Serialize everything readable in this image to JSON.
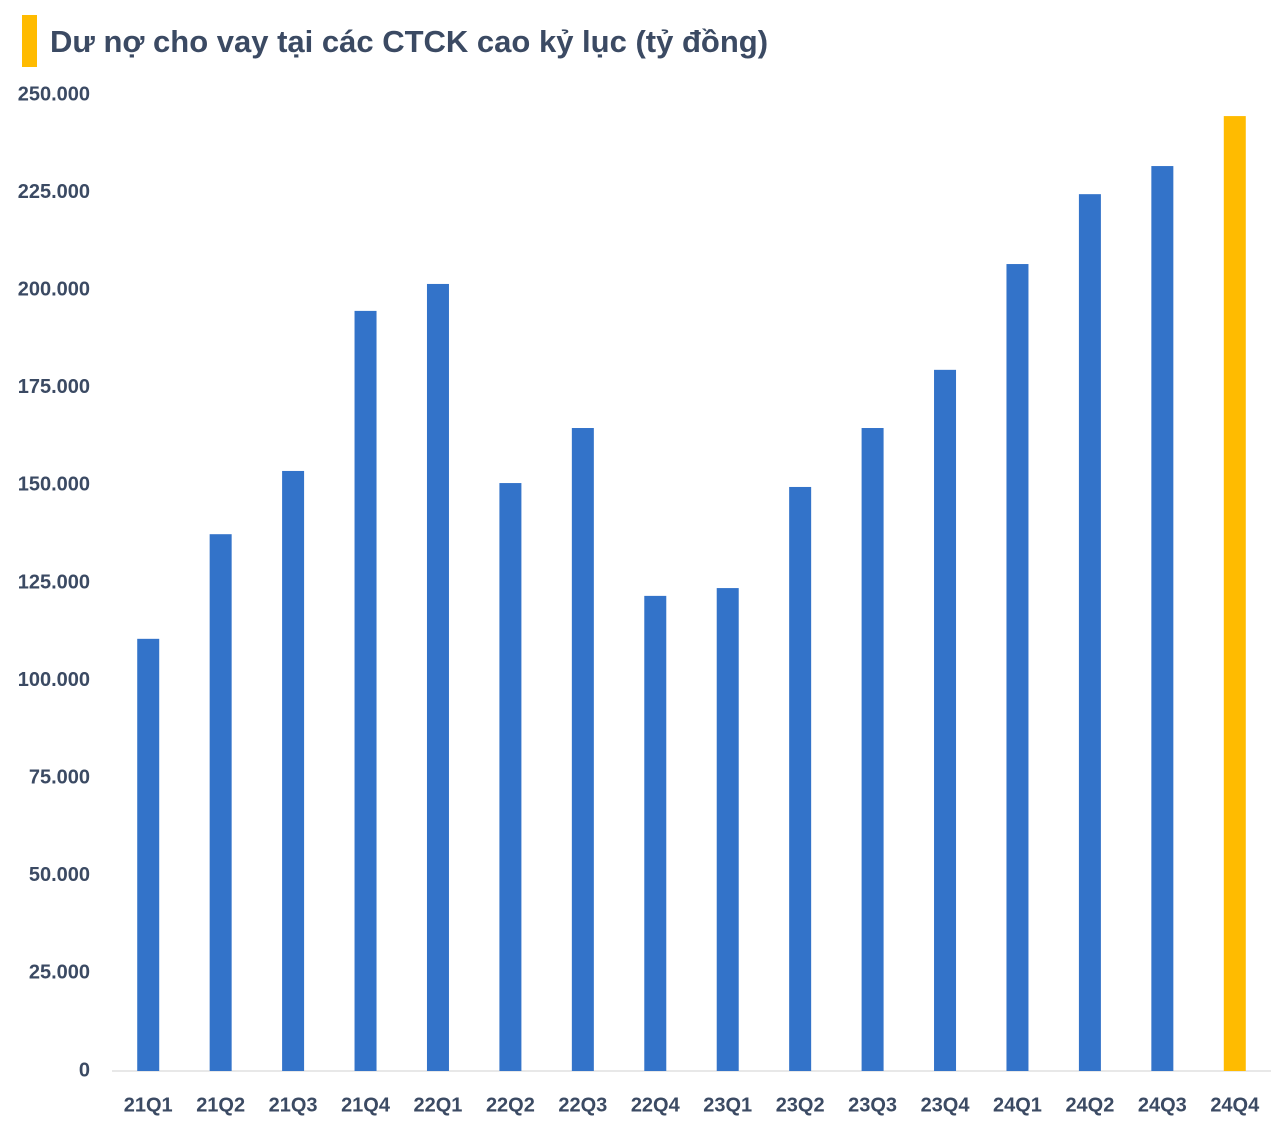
{
  "chart_data": {
    "type": "bar",
    "title": "Dư nợ cho vay tại các CTCK cao kỷ lục (tỷ đồng)",
    "categories": [
      "21Q1",
      "21Q2",
      "21Q3",
      "21Q4",
      "22Q1",
      "22Q2",
      "22Q3",
      "22Q4",
      "23Q1",
      "23Q2",
      "23Q3",
      "23Q4",
      "24Q1",
      "24Q2",
      "24Q3",
      "24Q4"
    ],
    "values": [
      110700,
      137500,
      153700,
      194700,
      201600,
      150600,
      164700,
      121700,
      123700,
      149600,
      164700,
      179600,
      206700,
      224600,
      231800,
      244600
    ],
    "colors": [
      "#3373c9",
      "#3373c9",
      "#3373c9",
      "#3373c9",
      "#3373c9",
      "#3373c9",
      "#3373c9",
      "#3373c9",
      "#3373c9",
      "#3373c9",
      "#3373c9",
      "#3373c9",
      "#3373c9",
      "#3373c9",
      "#3373c9",
      "#ffbb00"
    ],
    "ylim": [
      0,
      250000
    ],
    "yticks": [
      0,
      {
        "value": 25000,
        "label": "25.000"
      },
      {
        "value": 50000,
        "label": "50.000"
      },
      {
        "value": 75000,
        "label": "75.000"
      },
      {
        "value": 100000,
        "label": "100.000"
      },
      {
        "value": 125000,
        "label": "125.000"
      },
      {
        "value": 150000,
        "label": "150.000"
      },
      {
        "value": 175000,
        "label": "175.000"
      },
      {
        "value": 200000,
        "label": "200.000"
      },
      {
        "value": 225000,
        "label": "225.000"
      },
      {
        "value": 250000,
        "label": "250.000"
      }
    ],
    "grid": false
  }
}
